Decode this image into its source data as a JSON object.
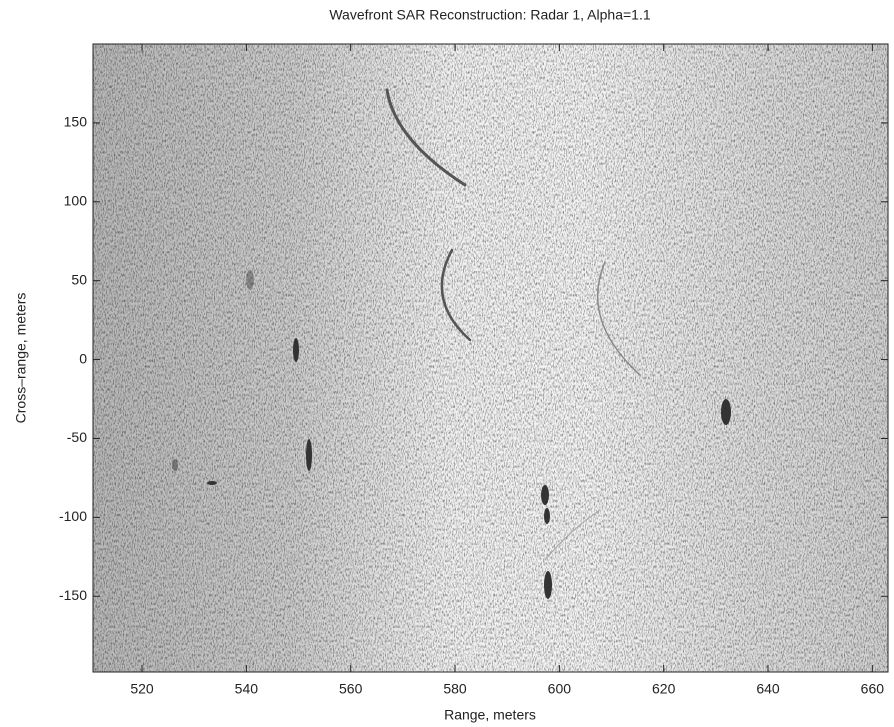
{
  "chart_data": {
    "type": "image",
    "title": "Wavefront SAR Reconstruction: Radar 1, Alpha=1.1",
    "x_label": "Range, meters",
    "y_label": "Cross–range, meters",
    "xlim": [
      510.6,
      663
    ],
    "ylim": [
      -198,
      200
    ],
    "xticks": [
      520,
      540,
      560,
      580,
      600,
      620,
      640,
      660
    ],
    "yticks": [
      -150,
      -100,
      -50,
      0,
      50,
      100,
      150
    ],
    "colormap": "gray-reversed"
  }
}
